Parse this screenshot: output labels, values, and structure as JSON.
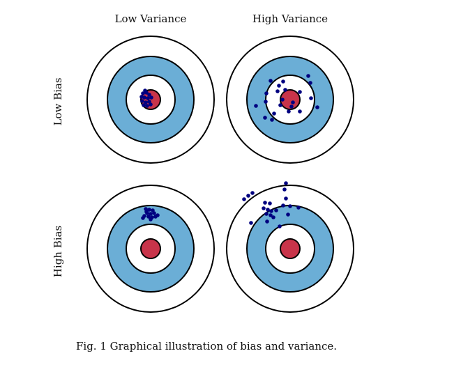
{
  "columns": [
    "Low Variance",
    "High Variance"
  ],
  "rows": [
    "Low Bias",
    "High Bias"
  ],
  "caption": "Fig. 1 Graphical illustration of bias and variance.",
  "colors": {
    "ring_outer": "#ffffff",
    "ring_mid": "#6baed6",
    "ring_inner": "#ffffff",
    "bullseye": "#c8344a",
    "dots": "#000080",
    "stroke": "#000000"
  },
  "targets": [
    {
      "name": "low-bias-low-variance"
    },
    {
      "name": "low-bias-high-variance"
    },
    {
      "name": "high-bias-low-variance"
    },
    {
      "name": "high-bias-high-variance"
    }
  ]
}
